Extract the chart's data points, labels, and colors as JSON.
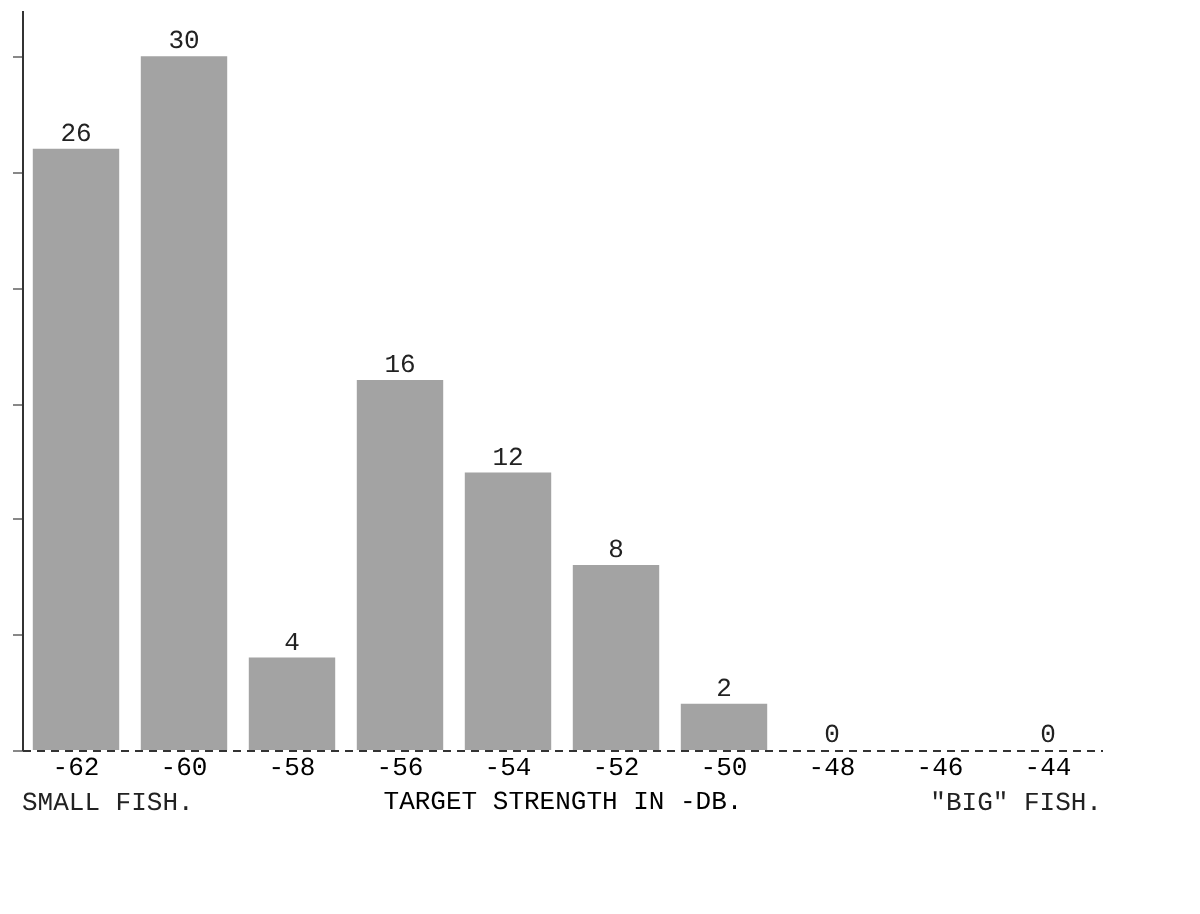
{
  "chart_data": {
    "type": "bar",
    "xlabel": "TARGET STRENGTH IN -DB.",
    "categories": [
      "-62",
      "-60",
      "-58",
      "-56",
      "-54",
      "-52",
      "-50",
      "-48",
      "-46",
      "-44"
    ],
    "values": [
      26,
      30,
      4,
      16,
      12,
      8,
      2,
      0,
      null,
      0
    ],
    "color": "#666666",
    "data_labels": true,
    "ylim": [
      0,
      32
    ],
    "tick_labels": "x",
    "grid": false,
    "annotations": [
      "SMALL FISH.",
      "\"BIG\" FISH."
    ]
  }
}
